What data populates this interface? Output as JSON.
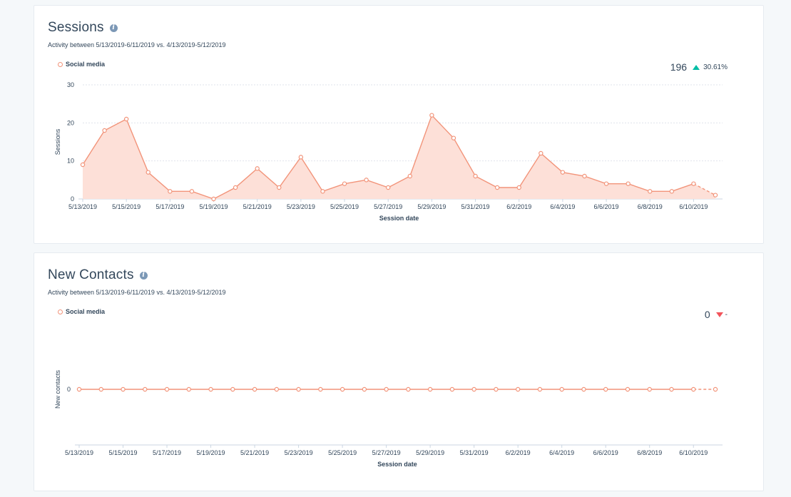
{
  "colors": {
    "series": "#f2947a",
    "area": "#fde0d8",
    "grid": "#dfe3eb",
    "up": "#00bda5",
    "down": "#f2545b"
  },
  "sessions": {
    "title": "Sessions",
    "info_icon": "info-icon",
    "subtitle": "Activity between 5/13/2019-6/11/2019 vs. 4/13/2019-5/12/2019",
    "legend": "Social media",
    "total": "196",
    "change": "30.61%",
    "change_direction": "up"
  },
  "contacts": {
    "title": "New Contacts",
    "info_icon": "info-icon",
    "subtitle": "Activity between 5/13/2019-6/11/2019 vs. 4/13/2019-5/12/2019",
    "legend": "Social media",
    "total": "0",
    "change": "-",
    "change_direction": "down"
  },
  "chart_data": [
    {
      "type": "area",
      "title": "Sessions",
      "xlabel": "Session date",
      "ylabel": "Sessions",
      "ylim": [
        0,
        30
      ],
      "yticks": [
        0,
        10,
        20,
        30
      ],
      "grid": true,
      "legend_position": "top-left",
      "x": [
        "5/13/2019",
        "5/14/2019",
        "5/15/2019",
        "5/16/2019",
        "5/17/2019",
        "5/18/2019",
        "5/19/2019",
        "5/20/2019",
        "5/21/2019",
        "5/22/2019",
        "5/23/2019",
        "5/24/2019",
        "5/25/2019",
        "5/26/2019",
        "5/27/2019",
        "5/28/2019",
        "5/29/2019",
        "5/30/2019",
        "5/31/2019",
        "6/1/2019",
        "6/2/2019",
        "6/3/2019",
        "6/4/2019",
        "6/5/2019",
        "6/6/2019",
        "6/7/2019",
        "6/8/2019",
        "6/9/2019",
        "6/10/2019",
        "6/11/2019"
      ],
      "xtick_labels": [
        "5/13/2019",
        "5/15/2019",
        "5/17/2019",
        "5/19/2019",
        "5/21/2019",
        "5/23/2019",
        "5/25/2019",
        "5/27/2019",
        "5/29/2019",
        "5/31/2019",
        "6/2/2019",
        "6/4/2019",
        "6/6/2019",
        "6/8/2019",
        "6/10/2019"
      ],
      "series": [
        {
          "name": "Social media",
          "values": [
            9,
            18,
            21,
            7,
            2,
            2,
            0,
            3,
            8,
            3,
            11,
            2,
            4,
            5,
            3,
            6,
            22,
            16,
            6,
            3,
            3,
            12,
            7,
            6,
            4,
            4,
            2,
            2,
            4,
            1
          ]
        }
      ],
      "last_segment_dashed": true
    },
    {
      "type": "line",
      "title": "New Contacts",
      "xlabel": "Session date",
      "ylabel": "New contacts",
      "yticks": [
        0
      ],
      "grid": false,
      "legend_position": "top-left",
      "x": [
        "5/13/2019",
        "5/14/2019",
        "5/15/2019",
        "5/16/2019",
        "5/17/2019",
        "5/18/2019",
        "5/19/2019",
        "5/20/2019",
        "5/21/2019",
        "5/22/2019",
        "5/23/2019",
        "5/24/2019",
        "5/25/2019",
        "5/26/2019",
        "5/27/2019",
        "5/28/2019",
        "5/29/2019",
        "5/30/2019",
        "5/31/2019",
        "6/1/2019",
        "6/2/2019",
        "6/3/2019",
        "6/4/2019",
        "6/5/2019",
        "6/6/2019",
        "6/7/2019",
        "6/8/2019",
        "6/9/2019",
        "6/10/2019",
        "6/11/2019"
      ],
      "xtick_labels": [
        "5/13/2019",
        "5/15/2019",
        "5/17/2019",
        "5/19/2019",
        "5/21/2019",
        "5/23/2019",
        "5/25/2019",
        "5/27/2019",
        "5/29/2019",
        "5/31/2019",
        "6/2/2019",
        "6/4/2019",
        "6/6/2019",
        "6/8/2019",
        "6/10/2019"
      ],
      "series": [
        {
          "name": "Social media",
          "values": [
            0,
            0,
            0,
            0,
            0,
            0,
            0,
            0,
            0,
            0,
            0,
            0,
            0,
            0,
            0,
            0,
            0,
            0,
            0,
            0,
            0,
            0,
            0,
            0,
            0,
            0,
            0,
            0,
            0,
            0
          ]
        }
      ],
      "last_segment_dashed": true
    }
  ]
}
